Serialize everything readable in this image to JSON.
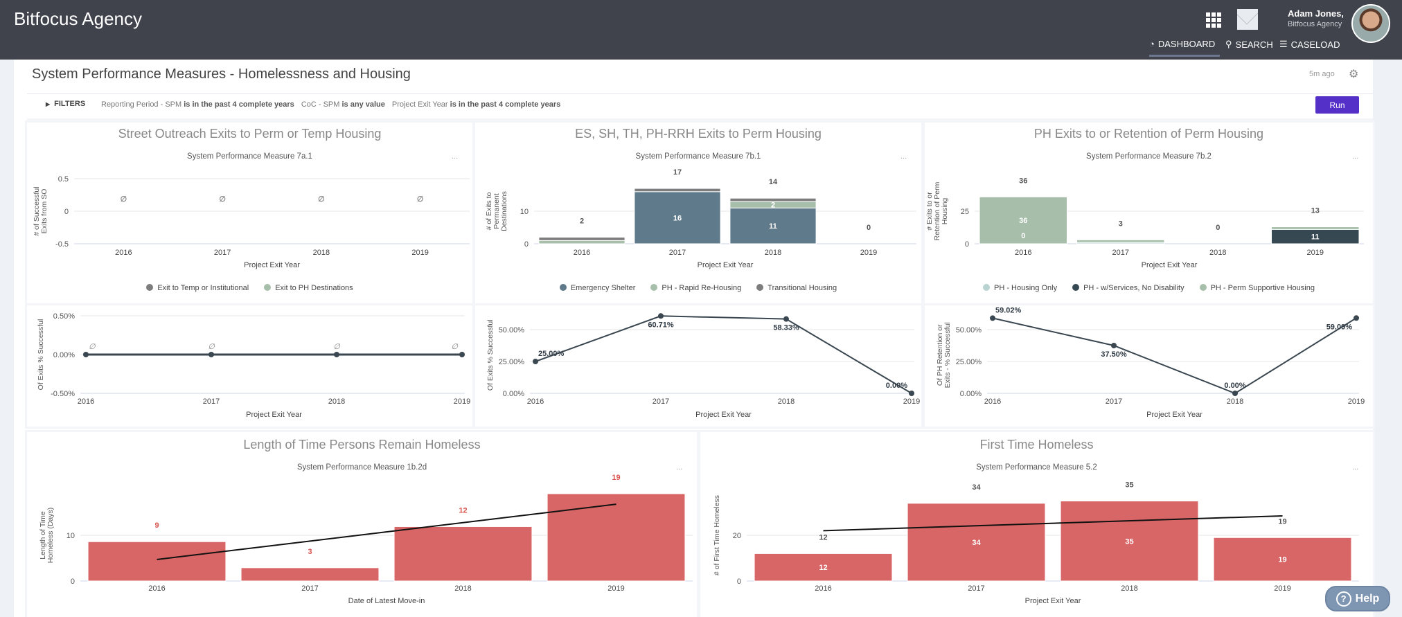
{
  "header": {
    "brand": "Bitfocus Agency",
    "user_name": "Adam Jones,",
    "user_org": "Bitfocus Agency",
    "nav": [
      {
        "label": "DASHBOARD",
        "icon": "speedometer-icon",
        "active": true
      },
      {
        "label": "SEARCH",
        "icon": "search-icon"
      },
      {
        "label": "CASELOAD",
        "icon": "list-icon"
      }
    ]
  },
  "dashboard": {
    "title": "System Performance Measures - Homelessness and Housing",
    "updated": "5m ago",
    "filters_label": "FILTERS",
    "filters": [
      {
        "field": "Reporting Period - SPM",
        "condition": "is in the past 4 complete years"
      },
      {
        "field": "CoC - SPM",
        "condition": "is any value"
      },
      {
        "field": "Project Exit Year",
        "condition": "is in the past 4 complete years"
      }
    ],
    "run_label": "Run",
    "more_label": "..."
  },
  "help_label": "Help",
  "colors": {
    "header": "#40434c",
    "accent": "#5530c8",
    "bar_red": "#d96666",
    "line": "#3a4750"
  },
  "chart_data": [
    {
      "type": "bar",
      "stacked": true,
      "title": "Street Outreach Exits to Perm or Temp Housing",
      "subtitle": "System Performance Measure 7a.1",
      "xlabel": "Project Exit Year",
      "ylabel": [
        "# of Successful",
        "Exits from SO"
      ],
      "categories": [
        "2016",
        "2017",
        "2018",
        "2019"
      ],
      "ylim": [
        -0.5,
        0.5
      ],
      "yticks": [
        {
          "v": 0.5,
          "label": "0.5"
        },
        {
          "v": 0,
          "label": "0"
        },
        {
          "v": -0.5,
          "label": "-0.5"
        }
      ],
      "series": [
        {
          "name": "Exit to Temp or Institutional",
          "color": "#7d7d7d",
          "values": [
            null,
            null,
            null,
            null
          ]
        },
        {
          "name": "Exit to PH Destinations",
          "color": "#a7bfaa",
          "values": [
            null,
            null,
            null,
            null
          ]
        }
      ],
      "total_labels": [
        "∅",
        "∅",
        "∅",
        "∅"
      ],
      "grid": true,
      "legend": "bottom"
    },
    {
      "type": "bar",
      "stacked": true,
      "title": "ES, SH, TH, PH-RRH Exits to Perm Housing",
      "subtitle": "System Performance Measure 7b.1",
      "xlabel": "Project Exit Year",
      "ylabel": [
        "# of Exits to",
        "Permanent",
        "Destinations"
      ],
      "categories": [
        "2016",
        "2017",
        "2018",
        "2019"
      ],
      "ylim": [
        0,
        20
      ],
      "yticks": [
        {
          "v": 10,
          "label": "10"
        },
        {
          "v": 0,
          "label": "0"
        }
      ],
      "series": [
        {
          "name": "Emergency Shelter",
          "color": "#5f7a8a",
          "values": [
            0,
            16,
            11,
            0
          ],
          "labels": [
            null,
            "16",
            "11",
            null
          ]
        },
        {
          "name": "PH - Rapid Re-Housing",
          "color": "#a7bfaa",
          "values": [
            1,
            0,
            2,
            0
          ],
          "labels": [
            null,
            null,
            "2",
            null
          ]
        },
        {
          "name": "Transitional Housing",
          "color": "#7d7d7d",
          "values": [
            1,
            1,
            1,
            0
          ],
          "labels": [
            null,
            null,
            null,
            null
          ]
        }
      ],
      "total_labels": [
        "2",
        "17",
        "14",
        "0"
      ],
      "grid": true,
      "legend": "bottom"
    },
    {
      "type": "bar",
      "stacked": true,
      "title": "PH Exits to or Retention of Perm Housing",
      "subtitle": "System Performance Measure 7b.2",
      "xlabel": "Project Exit Year",
      "ylabel": [
        "# Exits to or",
        "Retention of Perm",
        "Housing"
      ],
      "categories": [
        "2016",
        "2017",
        "2018",
        "2019"
      ],
      "ylim": [
        0,
        50
      ],
      "yticks": [
        {
          "v": 25,
          "label": "25"
        },
        {
          "v": 0,
          "label": "0"
        }
      ],
      "series": [
        {
          "name": "PH - Housing Only",
          "color": "#b9d3d0",
          "values": [
            0,
            1,
            0,
            0
          ],
          "labels": [
            null,
            null,
            null,
            null
          ]
        },
        {
          "name": "PH - w/Services, No Disability",
          "color": "#364852",
          "values": [
            0,
            0,
            0,
            11
          ],
          "labels": [
            "0",
            null,
            null,
            "11"
          ]
        },
        {
          "name": "PH - Perm Supportive Housing",
          "color": "#a7bfaa",
          "values": [
            36,
            2,
            0,
            2
          ],
          "labels": [
            "36",
            null,
            null,
            null
          ]
        }
      ],
      "total_labels": [
        "36",
        "3",
        "0",
        "13"
      ],
      "grid": true,
      "legend": "bottom"
    },
    {
      "type": "line",
      "xlabel": "Project Exit Year",
      "ylabel": [
        "Of Exits % Successful"
      ],
      "categories": [
        "2016",
        "2017",
        "2018",
        "2019"
      ],
      "ylim": [
        -0.5,
        0.5
      ],
      "yticks": [
        {
          "v": 0.5,
          "label": "0.50%"
        },
        {
          "v": 0,
          "label": "0.00%"
        },
        {
          "v": -0.5,
          "label": "-0.50%"
        }
      ],
      "series": [
        {
          "color": "#3a4750",
          "values": [
            0,
            0,
            0,
            0
          ]
        }
      ],
      "point_labels": [
        "∅",
        "∅",
        "∅",
        "∅"
      ],
      "grid": true
    },
    {
      "type": "line",
      "xlabel": "Project Exit Year",
      "ylabel": [
        "Of Exits % Successful"
      ],
      "categories": [
        "2016",
        "2017",
        "2018",
        "2019"
      ],
      "ylim": [
        0,
        60
      ],
      "yticks": [
        {
          "v": 50,
          "label": "50.00%"
        },
        {
          "v": 25,
          "label": "25.00%"
        },
        {
          "v": 0,
          "label": "0.00%"
        }
      ],
      "series": [
        {
          "color": "#3a4750",
          "values": [
            25,
            60.71,
            58.33,
            0
          ]
        }
      ],
      "point_labels": [
        "25.00%",
        "60.71%",
        "58.33%",
        "0.00%"
      ],
      "grid": true
    },
    {
      "type": "line",
      "xlabel": "Project Exit Year",
      "ylabel": [
        "Of PH Retention or",
        "Exits - % Successful"
      ],
      "categories": [
        "2016",
        "2017",
        "2018",
        "2019"
      ],
      "ylim": [
        0,
        60
      ],
      "yticks": [
        {
          "v": 50,
          "label": "50.00%"
        },
        {
          "v": 25,
          "label": "25.00%"
        },
        {
          "v": 0,
          "label": "0.00%"
        }
      ],
      "series": [
        {
          "color": "#3a4750",
          "values": [
            59.02,
            37.5,
            0,
            59.09
          ]
        }
      ],
      "point_labels": [
        "59.02%",
        "37.50%",
        "0.00%",
        "59.09%"
      ],
      "grid": true
    },
    {
      "type": "bar",
      "title": "Length of Time Persons Remain Homeless",
      "subtitle": "System Performance Measure 1b.2d",
      "xlabel": "Date of Latest Move-in",
      "ylabel": [
        "Length of Time",
        "Homeless (Days)"
      ],
      "categories": [
        "2016",
        "2017",
        "2018",
        "2019"
      ],
      "ylim": [
        0,
        20
      ],
      "yticks": [
        {
          "v": 10,
          "label": "10"
        },
        {
          "v": 0,
          "label": "0"
        }
      ],
      "series": [
        {
          "color": "#d96666",
          "values": [
            8.6,
            2.9,
            11.9,
            19.1
          ],
          "labels": [
            null,
            null,
            null,
            null
          ]
        }
      ],
      "total_labels": [
        "9",
        "3",
        "12",
        "19"
      ],
      "total_label_color": "#d9534f",
      "trendline": {
        "start": 4.7,
        "end": 16.8
      },
      "grid": true
    },
    {
      "type": "bar",
      "title": "First Time Homeless",
      "subtitle": "System Performance Measure 5.2",
      "xlabel": "Project Exit Year",
      "ylabel": [
        "# of First Time Homeless"
      ],
      "categories": [
        "2016",
        "2017",
        "2018",
        "2019"
      ],
      "ylim": [
        0,
        40
      ],
      "yticks": [
        {
          "v": 20,
          "label": "20"
        },
        {
          "v": 0,
          "label": "0"
        }
      ],
      "series": [
        {
          "color": "#d96666",
          "values": [
            12,
            34,
            35,
            19
          ],
          "labels": [
            "12",
            "34",
            "35",
            "19"
          ]
        }
      ],
      "total_labels": [
        "12",
        "34",
        "35",
        "19"
      ],
      "trendline": {
        "start": 22,
        "end": 28.5
      },
      "grid": true
    }
  ]
}
